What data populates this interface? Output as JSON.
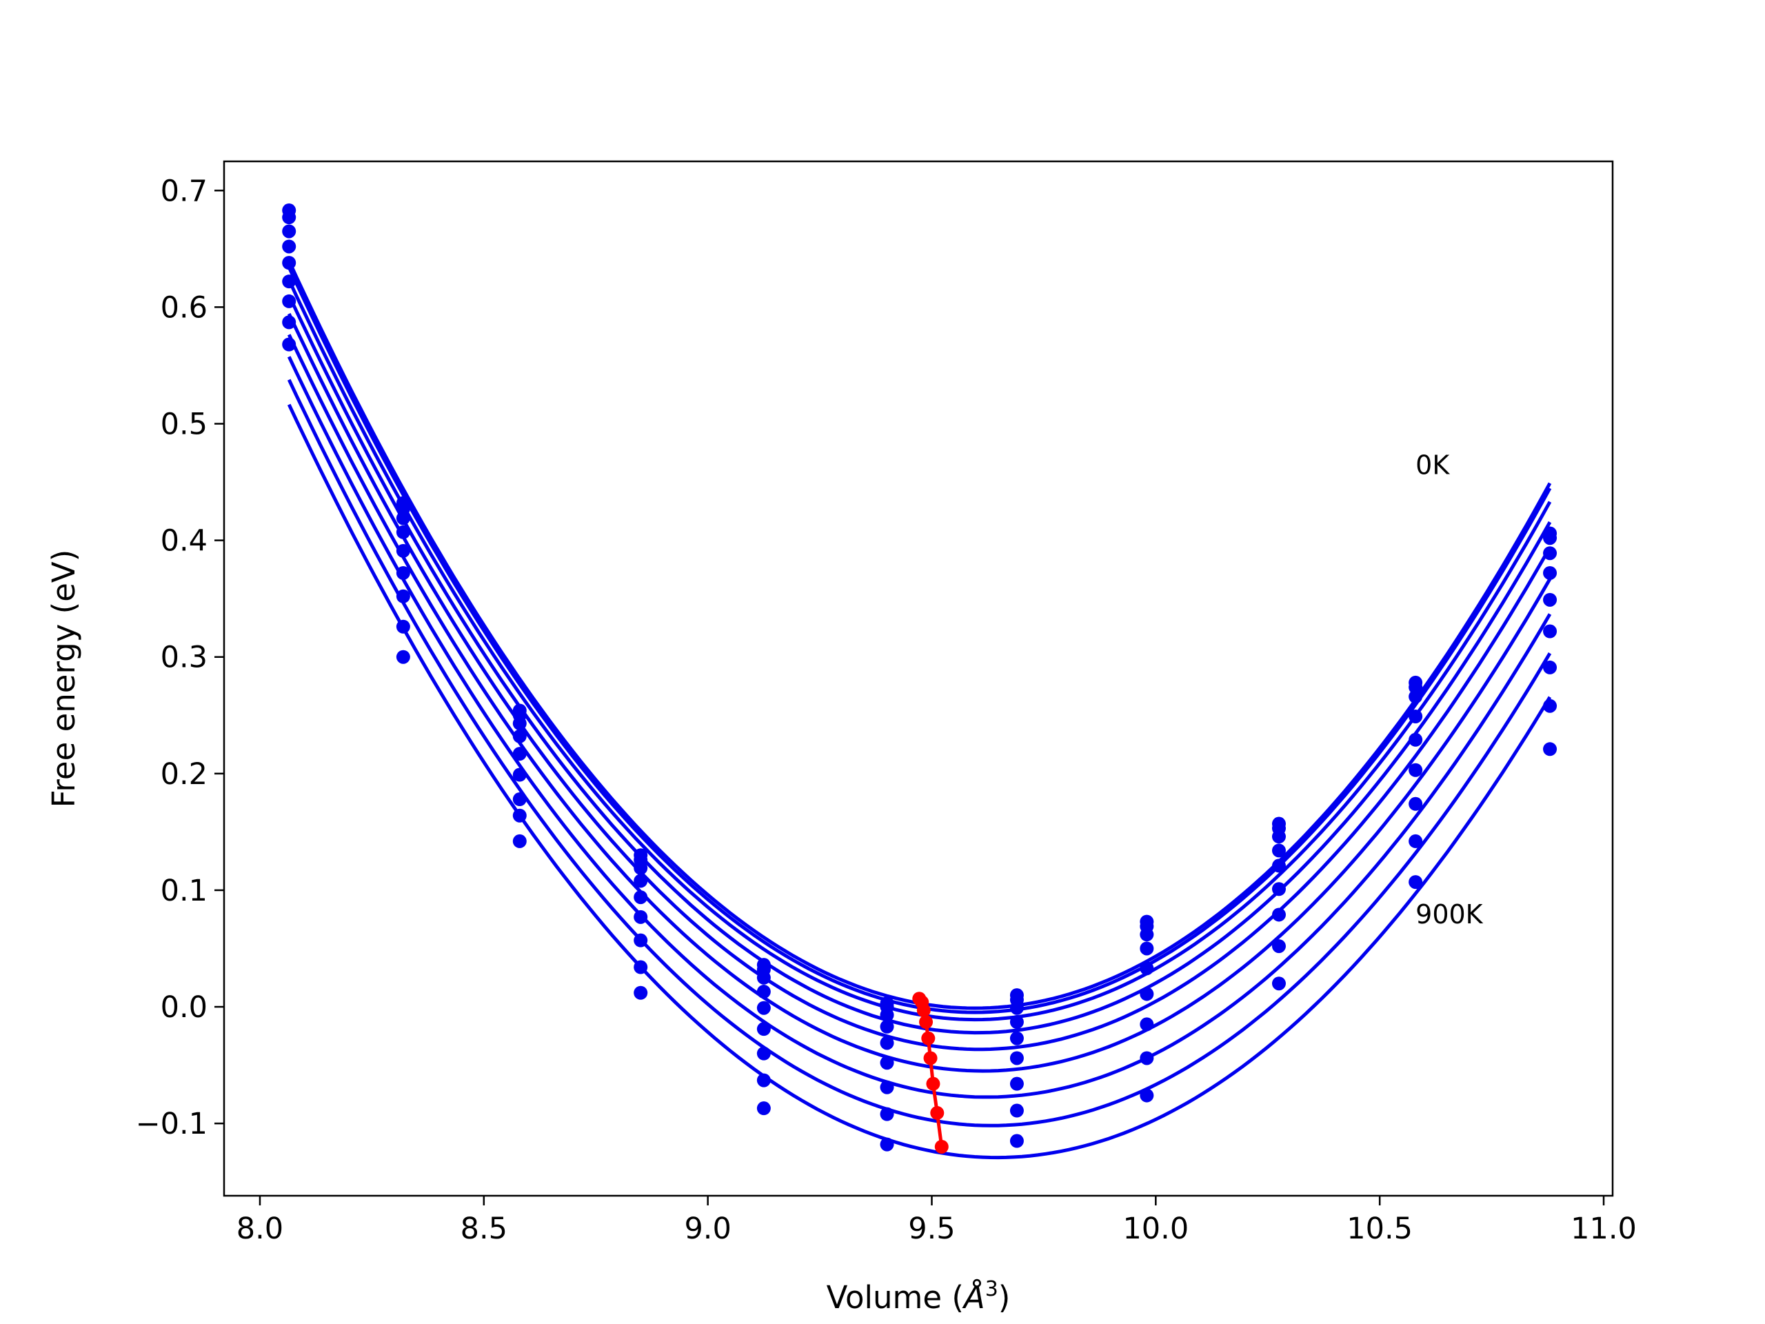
{
  "chart_data": {
    "type": "line",
    "xlabel": "Volume (",
    "xlabel_unit_symbol": "Å",
    "xlabel_unit_exp": "3",
    "xlabel_close": ")",
    "ylabel": "Free energy (eV)",
    "xlim": [
      7.92,
      11.02
    ],
    "ylim": [
      -0.162,
      0.725
    ],
    "xticks": [
      8.0,
      8.5,
      9.0,
      9.5,
      10.0,
      10.5,
      11.0
    ],
    "xtick_labels": [
      "8.0",
      "8.5",
      "9.0",
      "9.5",
      "10.0",
      "10.5",
      "11.0"
    ],
    "yticks": [
      -0.1,
      0.0,
      0.1,
      0.2,
      0.3,
      0.4,
      0.5,
      0.6,
      0.7
    ],
    "ytick_labels": [
      "−0.1",
      "0.0",
      "0.1",
      "0.2",
      "0.3",
      "0.4",
      "0.5",
      "0.6",
      "0.7"
    ],
    "grid": false,
    "legend": "none",
    "colors": {
      "curves": "#0000ee",
      "minima": "#ff0000",
      "frame": "#000000"
    },
    "annotations": [
      {
        "text": "0K",
        "x": 10.58,
        "y": 0.465
      },
      {
        "text": "900K",
        "x": 10.58,
        "y": 0.08
      }
    ],
    "sample_volumes": [
      8.065,
      8.32,
      8.58,
      8.85,
      9.125,
      9.4,
      9.69,
      9.98,
      10.275,
      10.58,
      10.88
    ],
    "series": [
      {
        "values": [
          0.683,
          0.432,
          0.254,
          0.13,
          0.036,
          0.003,
          0.01,
          0.073,
          0.157,
          0.278,
          0.406
        ]
      },
      {
        "values": [
          0.677,
          0.427,
          0.25,
          0.126,
          0.032,
          0.0,
          0.006,
          0.069,
          0.153,
          0.274,
          0.402
        ]
      },
      {
        "values": [
          0.665,
          0.419,
          0.243,
          0.119,
          0.025,
          -0.007,
          -0.001,
          0.062,
          0.146,
          0.266,
          0.389
        ]
      },
      {
        "values": [
          0.652,
          0.407,
          0.232,
          0.108,
          0.013,
          -0.017,
          -0.013,
          0.05,
          0.134,
          0.249,
          0.372
        ]
      },
      {
        "values": [
          0.638,
          0.391,
          0.217,
          0.094,
          -0.001,
          -0.031,
          -0.027,
          0.033,
          0.121,
          0.229,
          0.349
        ]
      },
      {
        "values": [
          0.622,
          0.372,
          0.199,
          0.077,
          -0.019,
          -0.048,
          -0.044,
          0.011,
          0.101,
          0.203,
          0.322
        ]
      },
      {
        "values": [
          0.605,
          0.352,
          0.178,
          0.057,
          -0.04,
          -0.069,
          -0.066,
          -0.015,
          0.079,
          0.174,
          0.291
        ]
      },
      {
        "values": [
          0.587,
          0.326,
          0.164,
          0.034,
          -0.063,
          -0.092,
          -0.089,
          -0.044,
          0.052,
          0.142,
          0.258
        ]
      },
      {
        "values": [
          0.568,
          0.3,
          0.142,
          0.012,
          -0.087,
          -0.118,
          -0.115,
          -0.076,
          0.02,
          0.107,
          0.221
        ]
      }
    ],
    "minima": {
      "x": [
        9.472,
        9.478,
        9.482,
        9.487,
        9.492,
        9.497,
        9.503,
        9.512,
        9.522
      ],
      "y": [
        0.007,
        0.004,
        -0.003,
        -0.013,
        -0.027,
        -0.044,
        -0.066,
        -0.091,
        -0.12
      ]
    }
  }
}
